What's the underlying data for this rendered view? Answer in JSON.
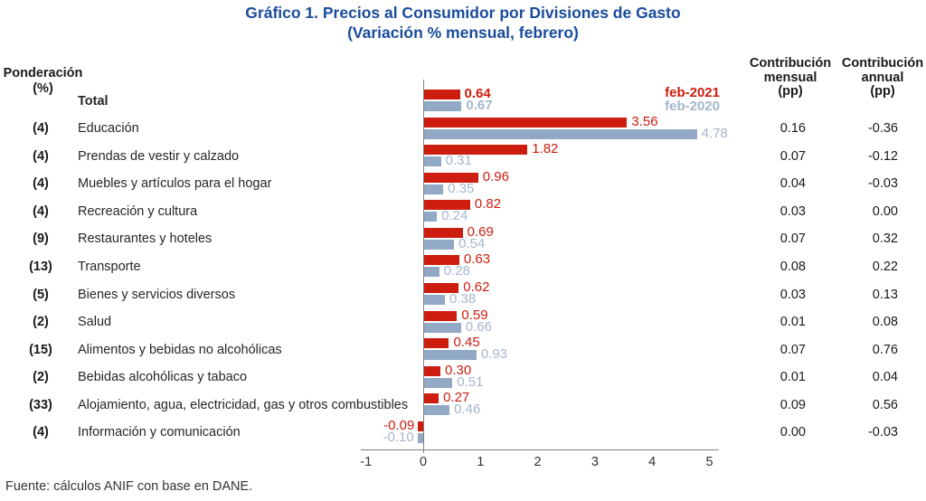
{
  "title": {
    "line1": "Gráfico 1. Precios al Consumidor por Divisiones de Gasto",
    "line2": "(Variación % mensual, febrero)"
  },
  "columns": {
    "ponderacion_line1": "Ponderación",
    "ponderacion_line2": "(%)",
    "contrib_mensual_lines": [
      "Contribución",
      "mensual",
      "(pp)"
    ],
    "contrib_annual_lines": [
      "Contribución",
      "annual",
      "(pp)"
    ]
  },
  "legend": {
    "s2021": "feb-2021",
    "s2020": "feb-2020"
  },
  "source": "Fuente: cálculos ANIF con base en DANE.",
  "colors": {
    "red": "#cc1d0e",
    "blue_bar": "#91a9c4",
    "blue_label": "#a3b7cb",
    "title_blue": "#1a4c9c"
  },
  "chart_data": {
    "type": "bar",
    "orientation": "horizontal",
    "title": "Gráfico 1. Precios al Consumidor por Divisiones de Gasto (Variación % mensual, febrero)",
    "series_names": [
      "feb-2021",
      "feb-2020"
    ],
    "x_axis": {
      "min": -1,
      "max": 5,
      "ticks": [
        -1,
        0,
        1,
        2,
        3,
        4,
        5
      ]
    },
    "rows": [
      {
        "weight": "",
        "label": "Total",
        "feb2021": 0.64,
        "feb2020": 0.67,
        "contrib_mensual": null,
        "contrib_annual": null,
        "bold": true
      },
      {
        "weight": "(4)",
        "label": "Educación",
        "feb2021": 3.56,
        "feb2020": 4.78,
        "contrib_mensual": 0.16,
        "contrib_annual": -0.36,
        "bold": false
      },
      {
        "weight": "(4)",
        "label": "Prendas de vestir y calzado",
        "feb2021": 1.82,
        "feb2020": 0.31,
        "contrib_mensual": 0.07,
        "contrib_annual": -0.12,
        "bold": false
      },
      {
        "weight": "(4)",
        "label": "Muebles y artículos para el hogar",
        "feb2021": 0.96,
        "feb2020": 0.35,
        "contrib_mensual": 0.04,
        "contrib_annual": -0.03,
        "bold": false
      },
      {
        "weight": "(4)",
        "label": "Recreación y cultura",
        "feb2021": 0.82,
        "feb2020": 0.24,
        "contrib_mensual": 0.03,
        "contrib_annual": 0.0,
        "bold": false
      },
      {
        "weight": "(9)",
        "label": "Restaurantes y hoteles",
        "feb2021": 0.69,
        "feb2020": 0.54,
        "contrib_mensual": 0.07,
        "contrib_annual": 0.32,
        "bold": false
      },
      {
        "weight": "(13)",
        "label": "Transporte",
        "feb2021": 0.63,
        "feb2020": 0.28,
        "contrib_mensual": 0.08,
        "contrib_annual": 0.22,
        "bold": false
      },
      {
        "weight": "(5)",
        "label": "Bienes y servicios diversos",
        "feb2021": 0.62,
        "feb2020": 0.38,
        "contrib_mensual": 0.03,
        "contrib_annual": 0.13,
        "bold": false
      },
      {
        "weight": "(2)",
        "label": "Salud",
        "feb2021": 0.59,
        "feb2020": 0.66,
        "contrib_mensual": 0.01,
        "contrib_annual": 0.08,
        "bold": false
      },
      {
        "weight": "(15)",
        "label": "Alimentos y bebidas no alcohólicas",
        "feb2021": 0.45,
        "feb2020": 0.93,
        "contrib_mensual": 0.07,
        "contrib_annual": 0.76,
        "bold": false
      },
      {
        "weight": "(2)",
        "label": "Bebidas alcohólicas y tabaco",
        "feb2021": 0.3,
        "feb2020": 0.51,
        "contrib_mensual": 0.01,
        "contrib_annual": 0.04,
        "bold": false
      },
      {
        "weight": "(33)",
        "label": "Alojamiento, agua, electricidad, gas y otros combustibles",
        "feb2021": 0.27,
        "feb2020": 0.46,
        "contrib_mensual": 0.09,
        "contrib_annual": 0.56,
        "bold": false
      },
      {
        "weight": "(4)",
        "label": "Información y comunicación",
        "feb2021": -0.09,
        "feb2020": -0.1,
        "contrib_mensual": 0.0,
        "contrib_annual": -0.03,
        "bold": false
      }
    ]
  }
}
